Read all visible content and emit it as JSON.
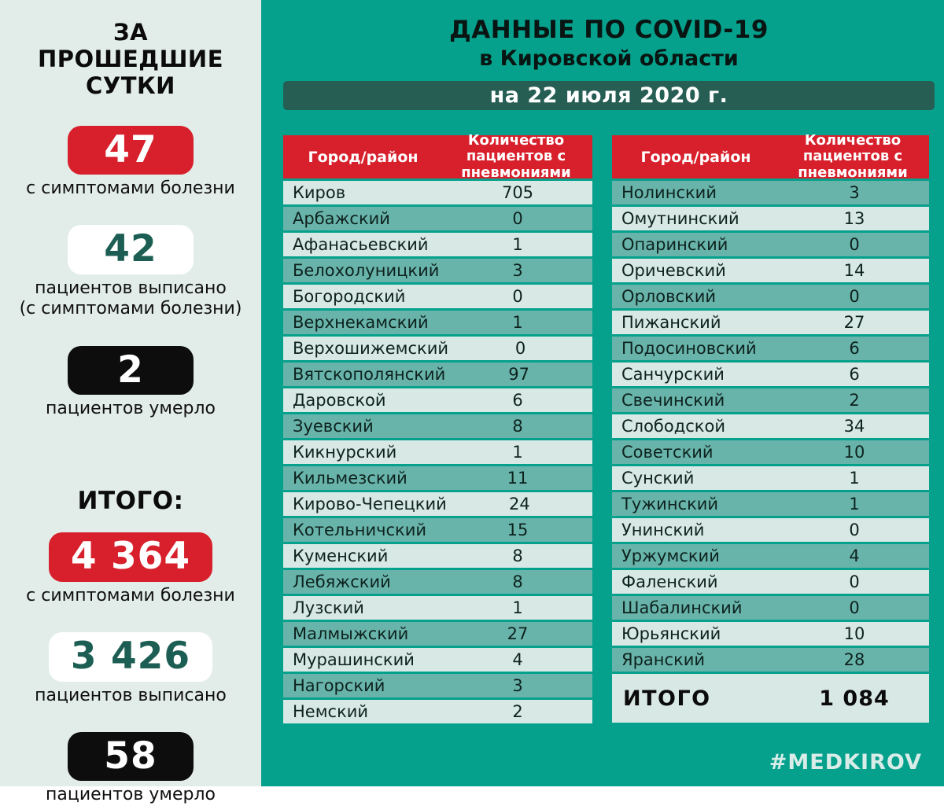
{
  "sidebar": {
    "title": "ЗА ПРОШЕДШИЕ СУТКИ",
    "total_heading": "ИТОГО:",
    "daily": [
      {
        "value": "47",
        "variant": "red",
        "label_lines": [
          "с симптомами болезни"
        ]
      },
      {
        "value": "42",
        "variant": "white",
        "label_lines": [
          "пациентов выписано",
          "(с симптомами болезни)"
        ]
      },
      {
        "value": "2",
        "variant": "black",
        "label_lines": [
          "пациентов умерло"
        ]
      }
    ],
    "total": [
      {
        "value": "4 364",
        "variant": "red",
        "label_lines": [
          "с симптомами болезни"
        ]
      },
      {
        "value": "3 426",
        "variant": "white",
        "label_lines": [
          "пациентов выписано"
        ]
      },
      {
        "value": "58",
        "variant": "black",
        "label_lines": [
          "пациентов умерло"
        ]
      }
    ]
  },
  "header": {
    "title": "ДАННЫЕ ПО COVID-19",
    "subtitle": "в Кировской области",
    "date": "на 22 июля 2020 г."
  },
  "tables": [
    {
      "headers": [
        "Город/район",
        "Количество пациентов с пневмониями"
      ],
      "first_row_shade": "light",
      "rows": [
        [
          "Киров",
          "705"
        ],
        [
          "Арбажский",
          "0"
        ],
        [
          "Афанасьевский",
          "1"
        ],
        [
          "Белохолуницкий",
          "3"
        ],
        [
          "Богородский",
          "0"
        ],
        [
          "Верхнекамский",
          "1"
        ],
        [
          "Верхошижемский",
          "0"
        ],
        [
          "Вятскополянский",
          "97"
        ],
        [
          "Даровской",
          "6"
        ],
        [
          "Зуевский",
          "8"
        ],
        [
          "Кикнурский",
          "1"
        ],
        [
          "Кильмезский",
          "11"
        ],
        [
          "Кирово-Чепецкий",
          "24"
        ],
        [
          "Котельничский",
          "15"
        ],
        [
          "Куменский",
          "8"
        ],
        [
          "Лебяжский",
          "8"
        ],
        [
          "Лузский",
          "1"
        ],
        [
          "Малмыжский",
          "27"
        ],
        [
          "Мурашинский",
          "4"
        ],
        [
          "Нагорский",
          "3"
        ],
        [
          "Немский",
          "2"
        ]
      ]
    },
    {
      "headers": [
        "Город/район",
        "Количество пациентов с пневмониями"
      ],
      "first_row_shade": "teal",
      "rows": [
        [
          "Нолинский",
          "3"
        ],
        [
          "Омутнинский",
          "13"
        ],
        [
          "Опаринский",
          "0"
        ],
        [
          "Оричевский",
          "14"
        ],
        [
          "Орловский",
          "0"
        ],
        [
          "Пижанский",
          "27"
        ],
        [
          "Подосиновский",
          "6"
        ],
        [
          "Санчурский",
          "6"
        ],
        [
          "Свечинский",
          "2"
        ],
        [
          "Слободской",
          "34"
        ],
        [
          "Советский",
          "10"
        ],
        [
          "Сунский",
          "1"
        ],
        [
          "Тужинский",
          "1"
        ],
        [
          "Унинский",
          "0"
        ],
        [
          "Уржумский",
          "4"
        ],
        [
          "Фаленский",
          "0"
        ],
        [
          "Шабалинский",
          "0"
        ],
        [
          "Юрьянский",
          "10"
        ],
        [
          "Яранский",
          "28"
        ]
      ],
      "total": {
        "label": "ИТОГО",
        "value": "1 084"
      }
    }
  ],
  "footer": {
    "hashtag": "#MEDKIROV"
  },
  "colors": {
    "main_background": "#05a18c",
    "sidebar_background": "#e2ede9",
    "accent_red": "#d8202c",
    "banner_dark_green": "#265e54",
    "row_light": "#d8e8e4",
    "row_teal": "#68b4aa",
    "badge_white_text": "#1c5e53",
    "badge_black": "#0d0d0d",
    "footer_text": "#d9ece8"
  }
}
